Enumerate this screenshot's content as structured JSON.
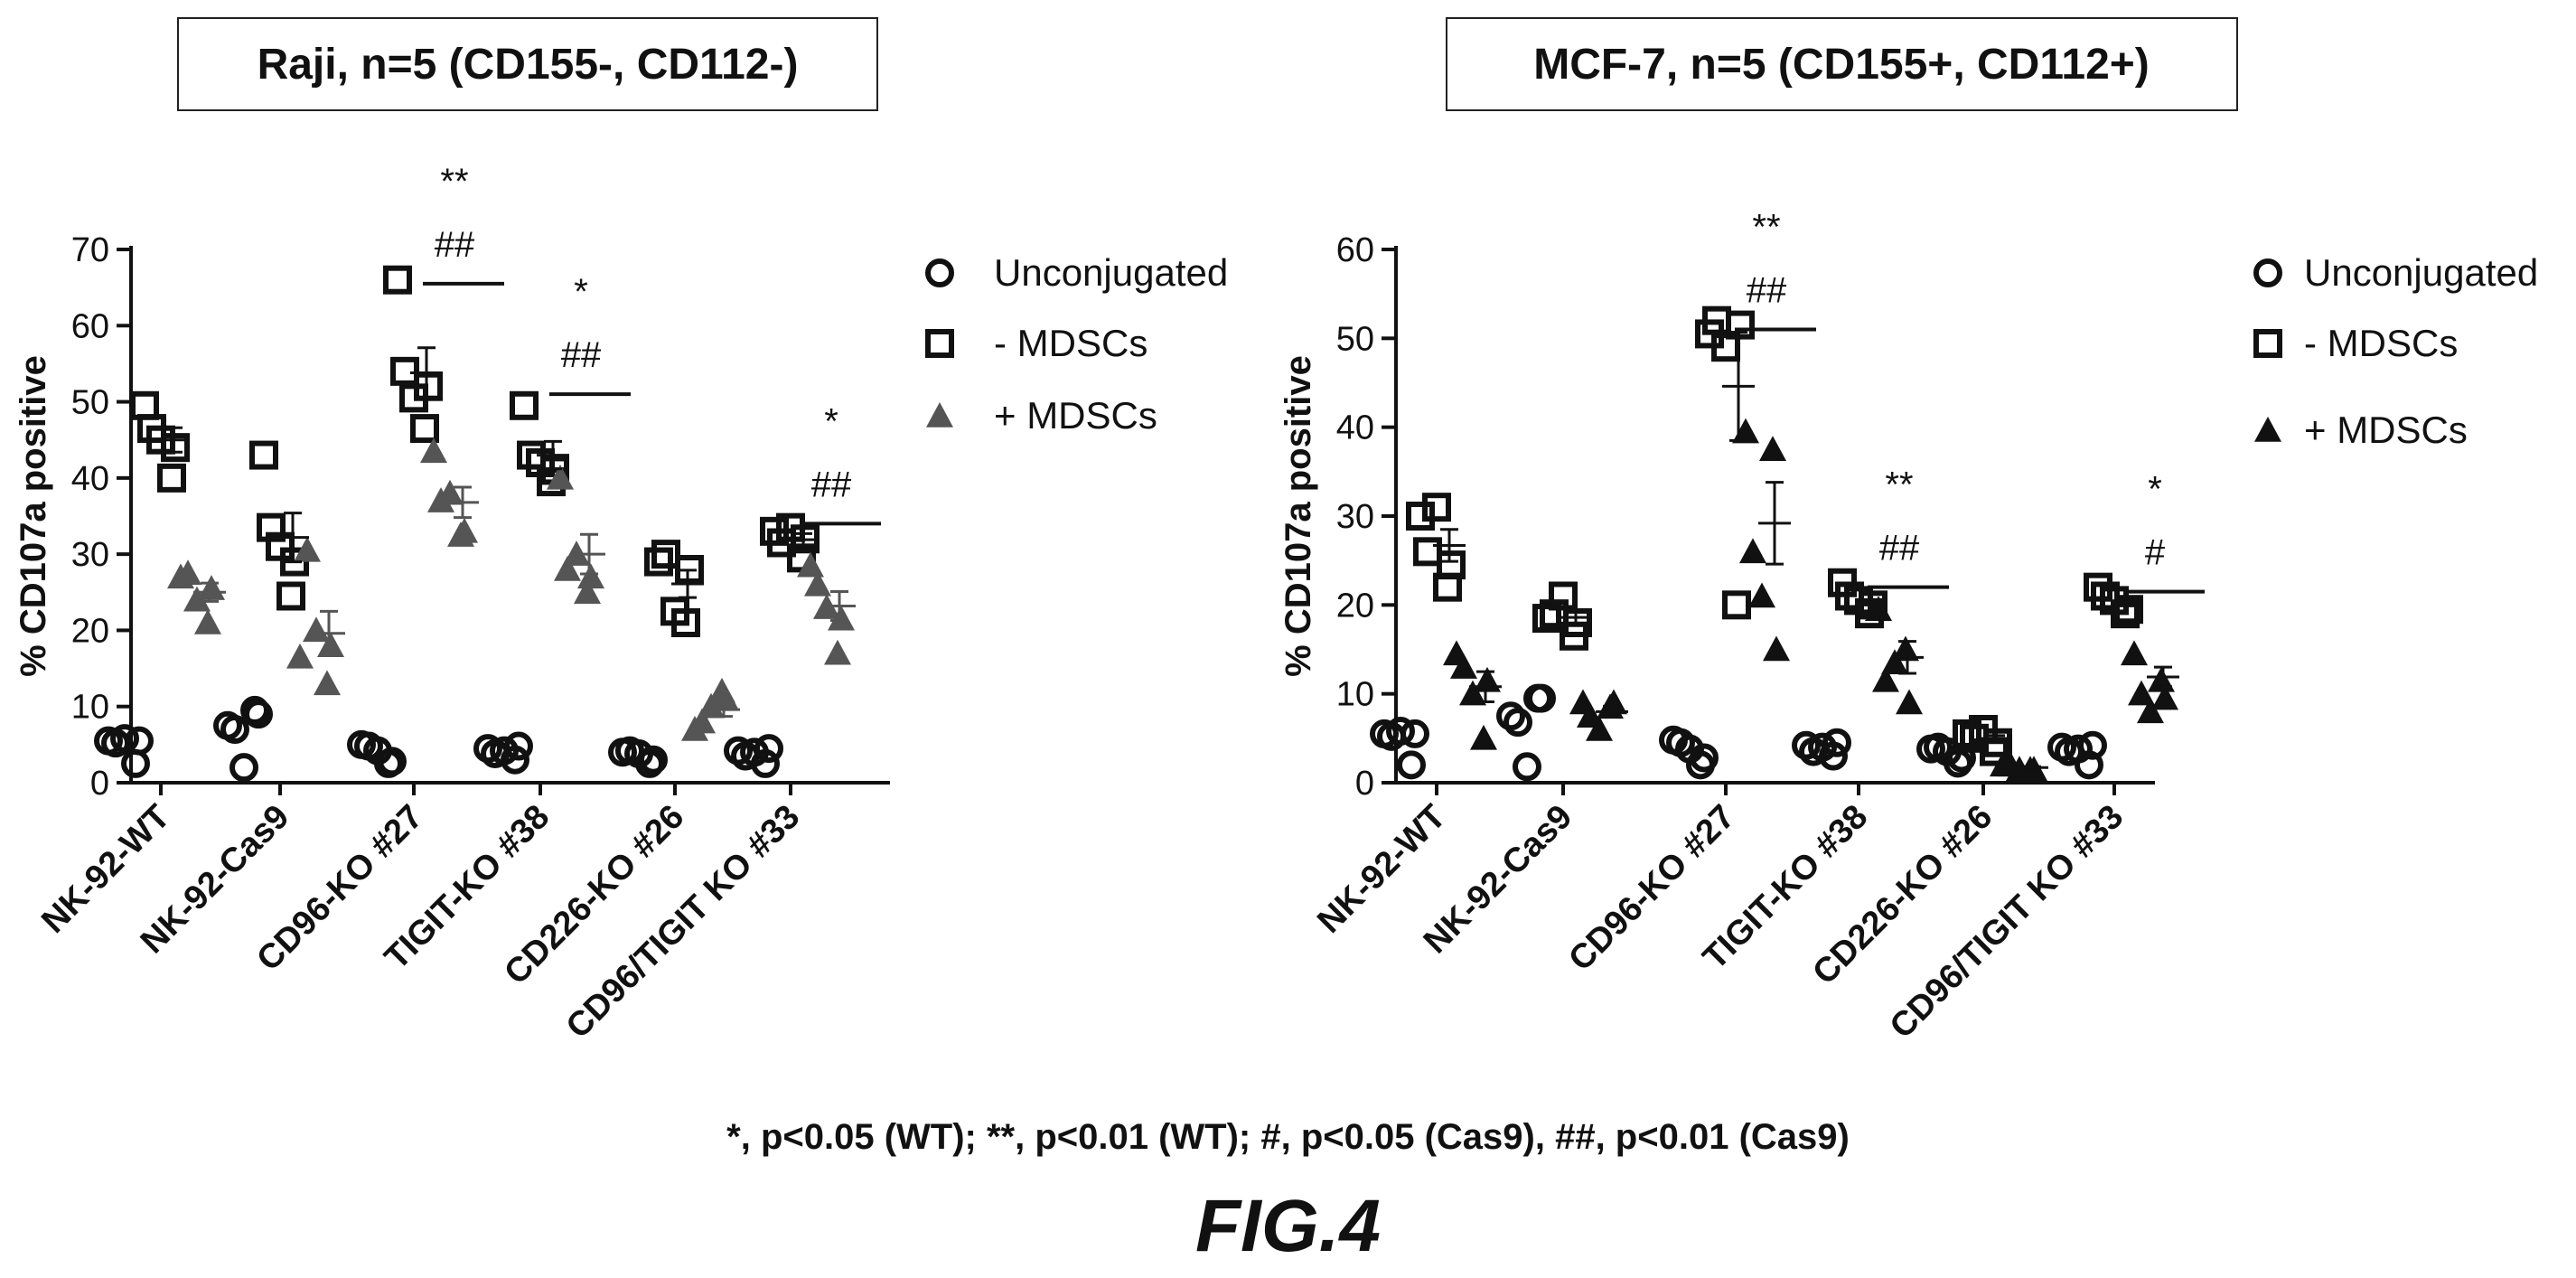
{
  "figure": {
    "footnote": "*, p<0.05 (WT); **, p<0.01 (WT); #, p<0.05 (Cas9), ##, p<0.01 (Cas9)",
    "label": "FIG.4"
  },
  "chart_data": [
    {
      "type": "scatter",
      "title": "Raji, n=5 (CD155-, CD112-)",
      "xlabel": "",
      "ylabel": "% CD107a positive",
      "ylim": [
        0,
        70
      ],
      "yticks": [
        0,
        10,
        20,
        30,
        40,
        50,
        60,
        70
      ],
      "categories": [
        "NK-92-WT",
        "NK-92-Cas9",
        "CD96-KO #27",
        "TIGIT-KO #38",
        "CD226-KO #26",
        "CD96/TIGIT KO #33"
      ],
      "legend_position": "right",
      "series": [
        {
          "name": "Unconjugated",
          "marker": "circle",
          "color": "#111111",
          "values": [
            [
              5.5,
              2.5,
              5.8,
              5.2,
              5.5
            ],
            [
              7.5,
              9.5,
              2,
              7,
              9
            ],
            [
              5,
              2.5,
              4.2,
              4.8,
              2.8
            ],
            [
              4.5,
              3,
              4.2,
              3.8,
              4.8
            ],
            [
              4,
              2.5,
              3.8,
              4.2,
              3
            ],
            [
              4.2,
              2.5,
              4,
              3.5,
              4.5
            ]
          ]
        },
        {
          "name": "- MDSCs",
          "marker": "square",
          "color": "#111111",
          "values": [
            [
              49.5,
              40,
              45,
              46.5,
              44
            ],
            [
              43,
              24.5,
              31,
              33.5,
              29
            ],
            [
              66,
              46.5,
              50.5,
              54,
              52
            ],
            [
              49.5,
              39.5,
              42,
              43,
              41
            ],
            [
              29,
              21,
              22.5,
              30,
              28
            ],
            [
              33,
              29.5,
              33.5,
              31.5,
              32
            ]
          ]
        },
        {
          "name": "+ MDSCs",
          "marker": "triangle",
          "color": "#555555",
          "values": [
            [
              27,
              21,
              24,
              27.5,
              25.5
            ],
            [
              16.5,
              13,
              20,
              30.5,
              18
            ],
            [
              43.5,
              32.5,
              38,
              37,
              33
            ],
            [
              40,
              25,
              30,
              28,
              27
            ],
            [
              7,
              12,
              10,
              8,
              11
            ],
            [
              28.5,
              17,
              23,
              26,
              21.5
            ]
          ]
        }
      ],
      "error_bars": {
        "- MDSCs": {
          "mean": [
            45,
            32.2,
            53.8,
            43,
            26.1,
            31.9
          ],
          "sem": [
            1.6,
            3.2,
            3.3,
            1.8,
            1.8,
            0.8
          ],
          "mean_line": [
            null,
            null,
            65.5,
            51,
            null,
            34
          ]
        },
        "+ MDSCs": {
          "mean": [
            25,
            19.6,
            36.8,
            30,
            9.6,
            23.2
          ],
          "sem": [
            1.2,
            2.9,
            2,
            2.6,
            0.9,
            1.9
          ]
        }
      },
      "annotations": [
        {
          "category": "CD96-KO #27",
          "text": [
            "**",
            "##"
          ]
        },
        {
          "category": "TIGIT-KO #38",
          "text": [
            "*",
            "##"
          ]
        },
        {
          "category": "CD96/TIGIT KO #33",
          "text": [
            "*",
            "##"
          ]
        }
      ]
    },
    {
      "type": "scatter",
      "title": "MCF-7, n=5 (CD155+, CD112+)",
      "xlabel": "",
      "ylabel": "% CD107a positive",
      "ylim": [
        0,
        60
      ],
      "yticks": [
        0,
        10,
        20,
        30,
        40,
        50,
        60
      ],
      "categories": [
        "NK-92-WT",
        "NK-92-Cas9",
        "CD96-KO #27",
        "TIGIT-KO #38",
        "CD226-KO #26",
        "CD96/TIGIT KO #33"
      ],
      "legend_position": "right",
      "series": [
        {
          "name": "Unconjugated",
          "marker": "circle",
          "color": "#111111",
          "values": [
            [
              5.5,
              2,
              5.8,
              5.2,
              5.5
            ],
            [
              7.5,
              9.5,
              1.8,
              6.8,
              9.5
            ],
            [
              4.8,
              2,
              3.8,
              4.5,
              2.8
            ],
            [
              4.2,
              3,
              4,
              3.5,
              4.5
            ],
            [
              3.8,
              2.2,
              3.5,
              4,
              2.8
            ],
            [
              4,
              2,
              3.8,
              3.5,
              4.2
            ]
          ]
        },
        {
          "name": "- MDSCs",
          "marker": "square",
          "color": "#111111",
          "values": [
            [
              30,
              22,
              31,
              26,
              24.5
            ],
            [
              18.5,
              16.5,
              21,
              19,
              18
            ],
            [
              50.5,
              20,
              49,
              52,
              51.5
            ],
            [
              22.5,
              19,
              20.5,
              21,
              20
            ],
            [
              5.5,
              3.5,
              6,
              5,
              4.5
            ],
            [
              22,
              19,
              20.5,
              21,
              19.5
            ]
          ]
        },
        {
          "name": "+ MDSCs",
          "marker": "triangle",
          "color": "#111111",
          "values": [
            [
              14.5,
              5,
              10,
              13,
              11.5
            ],
            [
              9,
              8.5,
              6,
              7.5,
              9
            ],
            [
              39.5,
              37.5,
              21,
              26,
              15
            ],
            [
              19.5,
              15,
              13.5,
              11.5,
              9
            ],
            [
              2,
              1.5,
              1.5,
              2,
              1.5
            ],
            [
              14.5,
              11.5,
              8,
              10,
              9.5
            ]
          ]
        }
      ],
      "error_bars": {
        "- MDSCs": {
          "mean": [
            26.7,
            18.6,
            44.6,
            20.6,
            4.9,
            20.4
          ],
          "sem": [
            1.8,
            0.8,
            6.1,
            0.6,
            0.4,
            0.5
          ],
          "mean_line": [
            null,
            null,
            51,
            22,
            null,
            21.5
          ]
        },
        "+ MDSCs": {
          "mean": [
            10.8,
            8,
            29.2,
            14.1,
            1.7,
            11.9
          ],
          "sem": [
            1.7,
            0.6,
            4.6,
            1.8,
            0.1,
            1.1
          ]
        }
      },
      "annotations": [
        {
          "category": "CD96-KO #27",
          "text": [
            "**",
            "##"
          ]
        },
        {
          "category": "TIGIT-KO #38",
          "text": [
            "**",
            "##"
          ]
        },
        {
          "category": "CD96/TIGIT KO #33",
          "text": [
            "*",
            "#"
          ]
        }
      ]
    }
  ]
}
